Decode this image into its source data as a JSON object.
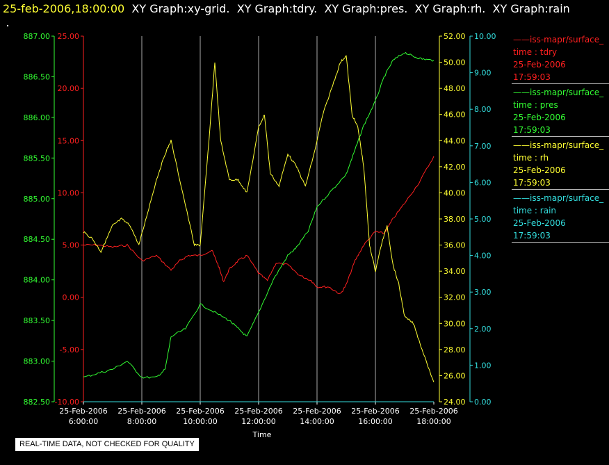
{
  "header": {
    "timestamp": "25-feb-2006,18:00:00",
    "graphs": [
      "XY Graph:xy-grid.",
      "XY Graph:tdry.",
      "XY Graph:pres.",
      "XY Graph:rh.",
      "XY Graph:rain"
    ]
  },
  "legend": [
    {
      "name": "iss-mapr/surface_",
      "field": "time : tdry",
      "date": "25-Feb-2006",
      "time": "17:59:03",
      "color": "#ff2020"
    },
    {
      "name": "iss-mapr/surface_",
      "field": "time : pres",
      "date": "25-Feb-2006",
      "time": "17:59:03",
      "color": "#33ff33"
    },
    {
      "name": "iss-mapr/surface_",
      "field": "time : rh",
      "date": "25-Feb-2006",
      "time": "17:59:03",
      "color": "#ffff33"
    },
    {
      "name": "iss-mapr/surface_",
      "field": "time : rain",
      "date": "25-Feb-2006",
      "time": "17:59:03",
      "color": "#33dddd"
    }
  ],
  "notice": "REAL-TIME DATA, NOT CHECKED FOR QUALITY",
  "chart_data": {
    "type": "line",
    "xlabel": "Time",
    "x_ticks": [
      {
        "date": "25-Feb-2006",
        "time": "6:00:00",
        "hour": 6
      },
      {
        "date": "25-Feb-2006",
        "time": "8:00:00",
        "hour": 8
      },
      {
        "date": "25-Feb-2006",
        "time": "10:00:00",
        "hour": 10
      },
      {
        "date": "25-Feb-2006",
        "time": "12:00:00",
        "hour": 12
      },
      {
        "date": "25-Feb-2006",
        "time": "14:00:00",
        "hour": 14
      },
      {
        "date": "25-Feb-2006",
        "time": "16:00:00",
        "hour": 16
      },
      {
        "date": "25-Feb-2006",
        "time": "18:00:00",
        "hour": 18
      }
    ],
    "xlim": [
      6,
      18
    ],
    "axes": {
      "pres": {
        "color": "#33ff33",
        "ylim": [
          882.5,
          887.0
        ],
        "ticks": [
          "887.00",
          "886.50",
          "886.00",
          "885.50",
          "885.00",
          "884.50",
          "884.00",
          "883.50",
          "883.00",
          "882.50"
        ]
      },
      "tdry": {
        "color": "#ff2020",
        "ylim": [
          -10,
          25
        ],
        "ticks": [
          "25.00",
          "20.00",
          "15.00",
          "10.00",
          "5.00",
          "0.00",
          "-5.00",
          "-10.00"
        ]
      },
      "rh": {
        "color": "#ffff33",
        "ylim": [
          24,
          52
        ],
        "ticks": [
          "52.00",
          "50.00",
          "48.00",
          "46.00",
          "44.00",
          "42.00",
          "40.00",
          "38.00",
          "36.00",
          "34.00",
          "32.00",
          "30.00",
          "28.00",
          "26.00",
          "24.00"
        ]
      },
      "rain": {
        "color": "#33dddd",
        "ylim": [
          0,
          10
        ],
        "ticks": [
          "10.00",
          "9.00",
          "8.00",
          "7.00",
          "6.00",
          "5.00",
          "4.00",
          "3.00",
          "2.00",
          "1.00",
          "0.00"
        ]
      }
    },
    "series": [
      {
        "name": "time : tdry",
        "axis": "tdry",
        "x": [
          6,
          6.5,
          7,
          7.5,
          8,
          8.5,
          9,
          9.3,
          9.6,
          10,
          10.4,
          10.6,
          10.8,
          11,
          11.3,
          11.6,
          12,
          12.3,
          12.6,
          13,
          13.4,
          13.8,
          14,
          14.4,
          14.8,
          15,
          15.3,
          15.6,
          16,
          16.3,
          16.6,
          17,
          17.5,
          18
        ],
        "values": [
          5,
          5,
          4.8,
          5,
          3.5,
          4,
          2.6,
          3.5,
          4,
          4,
          4.5,
          3.2,
          1.5,
          2.7,
          3.5,
          4,
          2.3,
          1.6,
          3.3,
          3.1,
          2.1,
          1.6,
          1,
          1,
          0.3,
          1.2,
          3.5,
          5,
          6.3,
          6.1,
          7.5,
          9,
          11,
          13.5
        ]
      },
      {
        "name": "time : pres",
        "axis": "pres",
        "x": [
          6,
          6.5,
          7,
          7.5,
          8,
          8.5,
          8.8,
          9,
          9.5,
          10,
          10.5,
          11,
          11.3,
          11.6,
          12,
          12.5,
          13,
          13.3,
          13.7,
          14,
          14.5,
          15,
          15.3,
          15.6,
          16,
          16.3,
          16.6,
          17,
          17.3,
          17.6,
          18
        ],
        "values": [
          882.8,
          882.85,
          882.9,
          883.0,
          882.8,
          882.8,
          882.9,
          883.3,
          883.4,
          883.7,
          883.6,
          883.5,
          883.4,
          883.3,
          883.6,
          884.0,
          884.3,
          884.4,
          884.6,
          884.9,
          885.1,
          885.3,
          885.6,
          885.9,
          886.2,
          886.5,
          886.7,
          886.8,
          886.75,
          886.72,
          886.7
        ]
      },
      {
        "name": "time : rh",
        "axis": "rh",
        "x": [
          6,
          6.3,
          6.6,
          6.8,
          7,
          7.3,
          7.6,
          7.9,
          8.2,
          8.5,
          8.8,
          9,
          9.4,
          9.8,
          10,
          10.3,
          10.5,
          10.7,
          11,
          11.3,
          11.6,
          12,
          12.2,
          12.4,
          12.7,
          13,
          13.3,
          13.6,
          13.9,
          14.2,
          14.5,
          14.8,
          15,
          15.2,
          15.4,
          15.6,
          15.8,
          16,
          16.2,
          16.4,
          16.6,
          16.8,
          17,
          17.3,
          17.6,
          18
        ],
        "values": [
          37,
          36.5,
          35.5,
          36.5,
          37.5,
          38,
          37.5,
          36,
          38.5,
          41,
          43,
          44,
          40,
          36,
          36,
          44,
          50,
          44,
          41,
          41,
          40,
          45,
          46,
          41.5,
          40.5,
          43,
          42,
          40.5,
          43,
          46,
          48,
          50,
          50.5,
          46,
          45,
          42,
          36,
          34,
          36,
          37.5,
          34.5,
          33,
          30.5,
          30,
          28,
          25.5
        ]
      },
      {
        "name": "time : rain",
        "axis": "rain",
        "x": [
          6,
          18
        ],
        "values": [
          0,
          0
        ]
      }
    ]
  }
}
